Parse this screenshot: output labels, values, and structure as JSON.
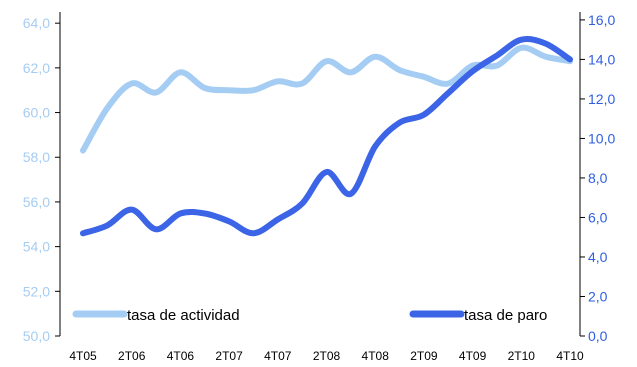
{
  "chart_data": {
    "type": "line",
    "categories": [
      "4T05",
      "1T06",
      "2T06",
      "3T06",
      "4T06",
      "1T07",
      "2T07",
      "3T07",
      "4T07",
      "1T08",
      "2T08",
      "3T08",
      "4T08",
      "1T09",
      "2T09",
      "3T09",
      "4T09",
      "1T10",
      "2T10",
      "3T10",
      "4T10"
    ],
    "x_tick_labels": [
      "4T05",
      "2T06",
      "4T06",
      "2T07",
      "4T07",
      "2T08",
      "4T08",
      "2T09",
      "4T09",
      "2T10",
      "4T10"
    ],
    "left_axis": {
      "ylim": [
        50,
        64.5
      ],
      "ticks": [
        "50,0",
        "52,0",
        "54,0",
        "56,0",
        "58,0",
        "60,0",
        "62,0",
        "64,0"
      ],
      "tick_values": [
        50,
        52,
        54,
        56,
        58,
        60,
        62,
        64
      ]
    },
    "right_axis": {
      "ylim": [
        0,
        16.4
      ],
      "ticks": [
        "0,0",
        "2,0",
        "4,0",
        "6,0",
        "8,0",
        "10,0",
        "12,0",
        "14,0",
        "16,0"
      ],
      "tick_values": [
        0,
        2,
        4,
        6,
        8,
        10,
        12,
        14,
        16
      ]
    },
    "series": [
      {
        "name": "tasa de actividad",
        "axis": "left",
        "color": "#a5cdf3",
        "values": [
          58.3,
          60.2,
          61.3,
          60.9,
          61.8,
          61.1,
          61.0,
          61.0,
          61.4,
          61.3,
          62.3,
          61.8,
          62.5,
          61.9,
          61.6,
          61.3,
          62.1,
          62.1,
          62.9,
          62.5,
          62.3
        ]
      },
      {
        "name": "tasa de paro",
        "axis": "right",
        "color": "#3b64e6",
        "values": [
          5.2,
          5.6,
          6.4,
          5.4,
          6.2,
          6.2,
          5.8,
          5.2,
          5.9,
          6.7,
          8.3,
          7.2,
          9.6,
          10.8,
          11.2,
          12.3,
          13.4,
          14.2,
          15.0,
          14.8,
          14.0
        ]
      }
    ],
    "legend": [
      {
        "label": "tasa de actividad",
        "placement": "bottom-left"
      },
      {
        "label": "tasa de paro",
        "placement": "bottom-right"
      }
    ]
  }
}
